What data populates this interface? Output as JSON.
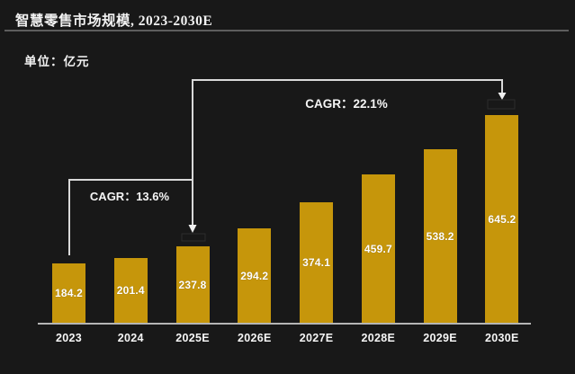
{
  "title": "智慧零售市场规模, 2023-2030E",
  "unit_label": "单位：亿元",
  "annotations": {
    "cagr_left": "CAGR：13.6%",
    "cagr_right": "CAGR：22.1%"
  },
  "colors": {
    "background": "#181818",
    "bar": "#C6960B",
    "text": "#FFFFFF",
    "axis_line": "#B5B5B5",
    "title_rule": "#5D5D5D",
    "bracket_line": "#D9D9D9"
  },
  "chart_data": {
    "type": "bar",
    "title": "智慧零售市场规模, 2023-2030E",
    "ylabel": "亿元",
    "categories": [
      "2023",
      "2024",
      "2025E",
      "2026E",
      "2027E",
      "2028E",
      "2029E",
      "2030E"
    ],
    "values": [
      184.2,
      201.4,
      237.8,
      294.2,
      374.1,
      459.7,
      538.2,
      645.2
    ],
    "value_label_position": "inside-center",
    "ylim": [
      0,
      700
    ],
    "grid": false,
    "legend": "none",
    "annotations": [
      {
        "text": "CAGR：13.6%",
        "from": "2023",
        "to": "2025E"
      },
      {
        "text": "CAGR：22.1%",
        "from": "2025E",
        "to": "2030E"
      }
    ]
  }
}
